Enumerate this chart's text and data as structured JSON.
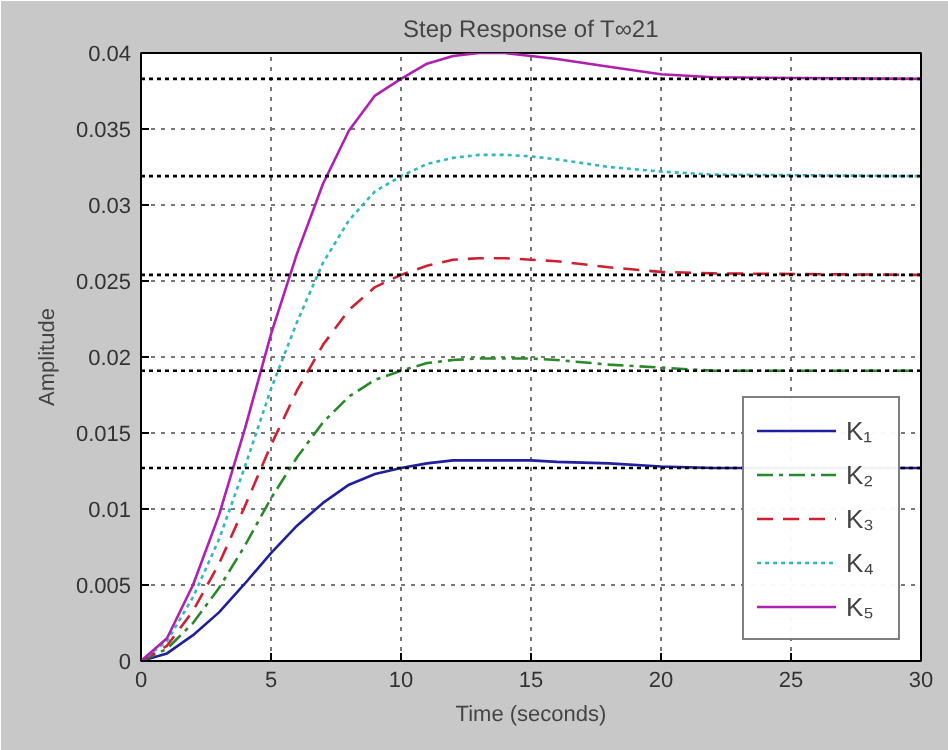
{
  "chart_data": {
    "type": "line",
    "title": "Step Response of T∞21",
    "xlabel": "Time (seconds)",
    "ylabel": "Amplitude",
    "x": [
      0,
      1,
      2,
      3,
      4,
      5,
      6,
      7,
      8,
      9,
      10,
      11,
      12,
      13,
      14,
      15,
      16,
      18,
      20,
      22,
      30
    ],
    "series": [
      {
        "name": "K₁",
        "color": "#1f1fa0",
        "line_style": "solid",
        "values": [
          0,
          0.0005,
          0.0017,
          0.0032,
          0.0051,
          0.0071,
          0.0089,
          0.0104,
          0.0116,
          0.0123,
          0.0127,
          0.013,
          0.0132,
          0.0132,
          0.0132,
          0.0132,
          0.0131,
          0.013,
          0.0128,
          0.0127,
          0.0127
        ]
      },
      {
        "name": "K₂",
        "color": "#2a8a2a",
        "line_style": "dashdot",
        "values": [
          0,
          0.0008,
          0.0025,
          0.0048,
          0.0076,
          0.0107,
          0.0134,
          0.0157,
          0.0174,
          0.0185,
          0.0191,
          0.0196,
          0.0198,
          0.0199,
          0.0199,
          0.0199,
          0.0198,
          0.0195,
          0.0193,
          0.0191,
          0.0191
        ]
      },
      {
        "name": "K₃",
        "color": "#d02030",
        "line_style": "dashed",
        "values": [
          0,
          0.001,
          0.0033,
          0.0064,
          0.0102,
          0.0142,
          0.0178,
          0.0208,
          0.0231,
          0.0246,
          0.0254,
          0.026,
          0.0264,
          0.0265,
          0.0265,
          0.0264,
          0.0263,
          0.0259,
          0.0256,
          0.0255,
          0.0254
        ]
      },
      {
        "name": "K₄",
        "color": "#30b8c0",
        "line_style": "dotted",
        "values": [
          0,
          0.0013,
          0.0042,
          0.008,
          0.0128,
          0.0179,
          0.0223,
          0.0262,
          0.029,
          0.0309,
          0.0319,
          0.0327,
          0.0331,
          0.0333,
          0.0333,
          0.0332,
          0.033,
          0.0325,
          0.0322,
          0.032,
          0.0319
        ]
      },
      {
        "name": "K₅",
        "color": "#b020b0",
        "line_style": "solid",
        "values": [
          0,
          0.0015,
          0.005,
          0.0096,
          0.0153,
          0.0215,
          0.0268,
          0.0314,
          0.0349,
          0.0372,
          0.0383,
          0.0393,
          0.0398,
          0.04,
          0.04,
          0.0398,
          0.0396,
          0.0391,
          0.0386,
          0.0384,
          0.0383
        ]
      }
    ],
    "xlim": [
      0,
      30
    ],
    "xticks": [
      0,
      5,
      10,
      15,
      20,
      25,
      30
    ],
    "ylim": [
      0,
      0.04
    ],
    "yticks": [
      0,
      0.005,
      0.01,
      0.015,
      0.02,
      0.025,
      0.03,
      0.035,
      0.04
    ],
    "ref_lines": [
      {
        "axis": "y",
        "value": 0.0127,
        "color": "#000000",
        "line_style": "dotted"
      },
      {
        "axis": "y",
        "value": 0.0191,
        "color": "#000000",
        "line_style": "dotted"
      },
      {
        "axis": "y",
        "value": 0.0254,
        "color": "#000000",
        "line_style": "dotted"
      },
      {
        "axis": "y",
        "value": 0.0319,
        "color": "#000000",
        "line_style": "dotted"
      },
      {
        "axis": "y",
        "value": 0.0383,
        "color": "#000000",
        "line_style": "dotted"
      }
    ],
    "grid": true,
    "legend": "bottom right"
  }
}
